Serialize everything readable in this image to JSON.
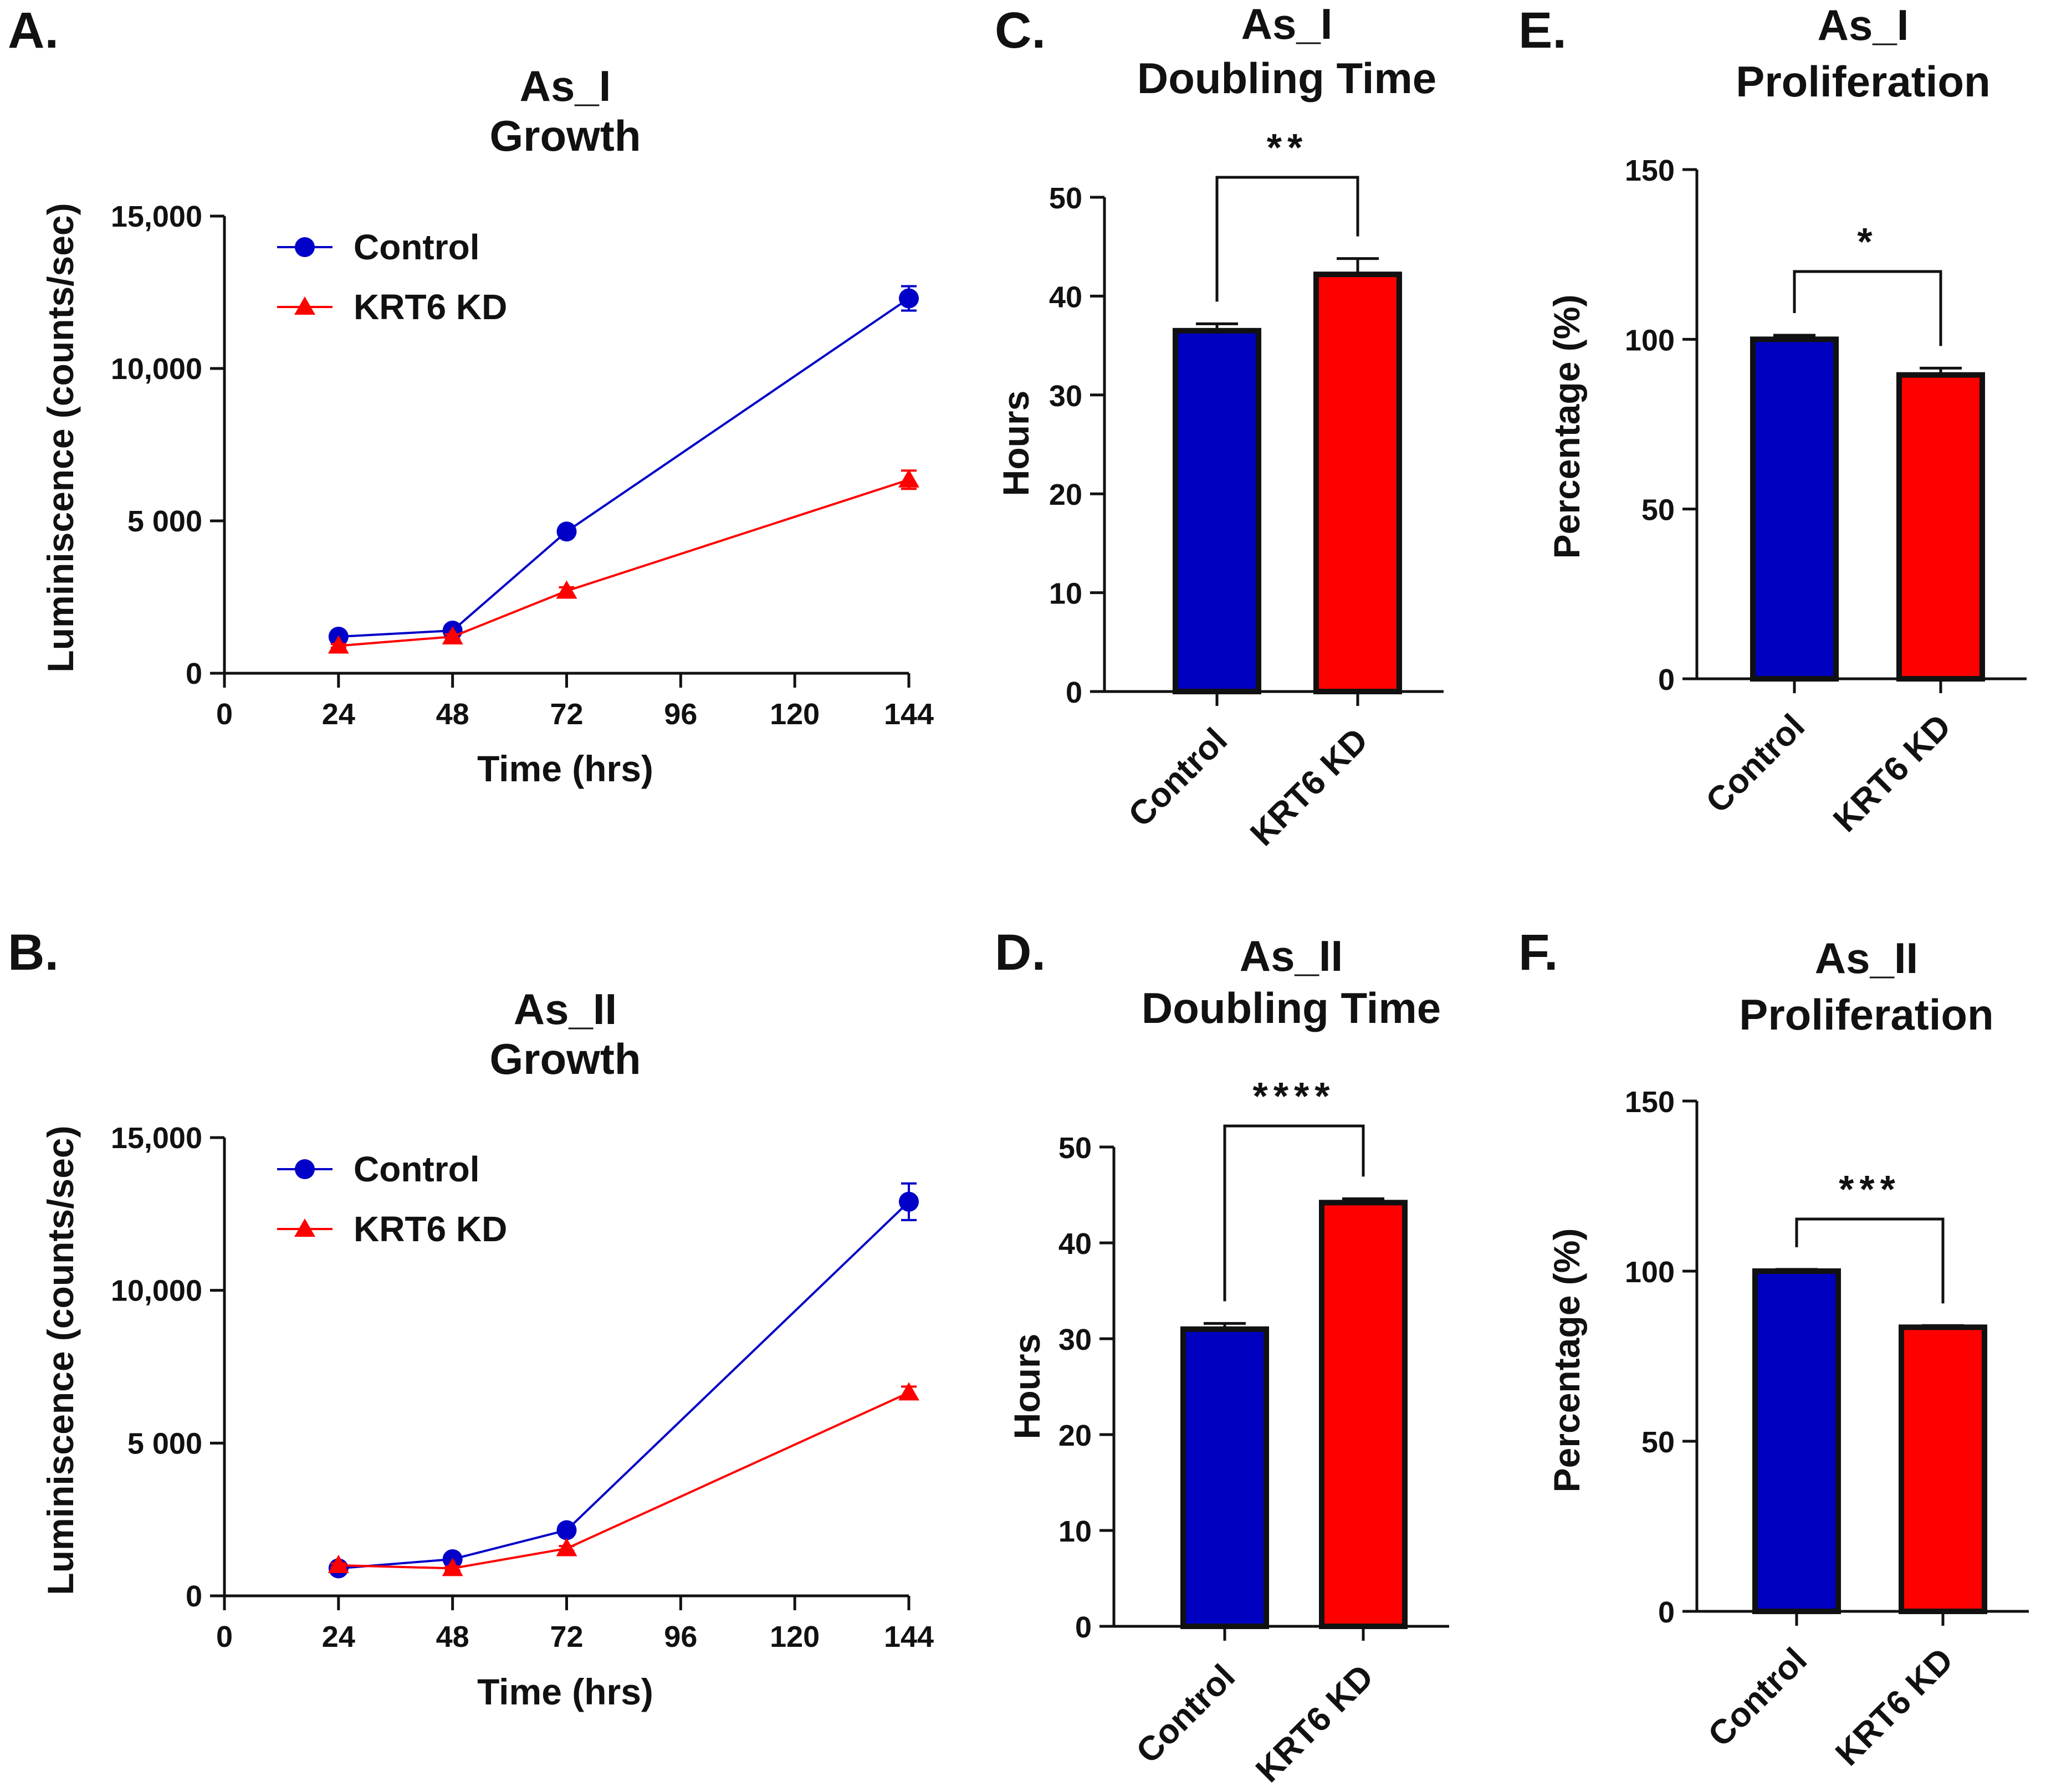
{
  "colors": {
    "control": "#0000c8",
    "krt6": "#ff0000",
    "control_bar": "#0000c0",
    "krt6_bar": "#ff0000",
    "axis": "#111111"
  },
  "chart_data": [
    {
      "id": "A",
      "panel": "A.",
      "type": "line",
      "title": [
        "As_I",
        "Growth"
      ],
      "xlabel": "Time (hrs)",
      "ylabel": "Luminiscence (counts/sec)",
      "xlim": [
        0,
        144
      ],
      "ylim": [
        0,
        15000
      ],
      "xticks": [
        0,
        24,
        48,
        72,
        96,
        120,
        144
      ],
      "xtick_labels": [
        "0",
        "24",
        "48",
        "72",
        "96",
        "120",
        "144"
      ],
      "yticks": [
        0,
        5000,
        10000,
        15000
      ],
      "ytick_labels": [
        "0",
        "5 000",
        "10,000",
        "15,000"
      ],
      "legend": "top-left",
      "series": [
        {
          "name": "Control",
          "color": "#0000c8",
          "marker": "circle",
          "x": [
            24,
            48,
            72,
            144
          ],
          "values": [
            1200,
            1400,
            4650,
            12300
          ],
          "err": [
            80,
            100,
            150,
            400
          ]
        },
        {
          "name": "KRT6 KD",
          "color": "#ff0000",
          "marker": "triangle",
          "x": [
            24,
            48,
            72,
            144
          ],
          "values": [
            900,
            1200,
            2700,
            6350
          ],
          "err": [
            60,
            80,
            120,
            300
          ]
        }
      ]
    },
    {
      "id": "B",
      "panel": "B.",
      "type": "line",
      "title": [
        "As_II",
        "Growth"
      ],
      "xlabel": "Time (hrs)",
      "ylabel": "Luminiscence (counts/sec)",
      "xlim": [
        0,
        144
      ],
      "ylim": [
        0,
        15000
      ],
      "xticks": [
        0,
        24,
        48,
        72,
        96,
        120,
        144
      ],
      "xtick_labels": [
        "0",
        "24",
        "48",
        "72",
        "96",
        "120",
        "144"
      ],
      "yticks": [
        0,
        5000,
        10000,
        15000
      ],
      "ytick_labels": [
        "0",
        "5 000",
        "10,000",
        "15,000"
      ],
      "legend": "top-left",
      "series": [
        {
          "name": "Control",
          "color": "#0000c8",
          "marker": "circle",
          "x": [
            24,
            48,
            72,
            144
          ],
          "values": [
            900,
            1200,
            2150,
            12900
          ],
          "err": [
            60,
            80,
            100,
            600
          ]
        },
        {
          "name": "KRT6 KD",
          "color": "#ff0000",
          "marker": "triangle",
          "x": [
            24,
            48,
            72,
            144
          ],
          "values": [
            1000,
            900,
            1550,
            6650
          ],
          "err": [
            60,
            60,
            80,
            200
          ]
        }
      ]
    },
    {
      "id": "C",
      "panel": "C.",
      "type": "bar",
      "title": [
        "As_I",
        "Doubling Time"
      ],
      "xlabel": "",
      "ylabel": "Hours",
      "ylim": [
        0,
        50
      ],
      "yticks": [
        0,
        10,
        20,
        30,
        40,
        50
      ],
      "ytick_labels": [
        "0",
        "10",
        "20",
        "30",
        "40",
        "50"
      ],
      "categories": [
        "Control",
        "KRT6 KD"
      ],
      "values": [
        36.5,
        42.2
      ],
      "err": [
        0.7,
        1.6
      ],
      "bar_colors": [
        "#0000c0",
        "#ff0000"
      ],
      "significance": "**"
    },
    {
      "id": "D",
      "panel": "D.",
      "type": "bar",
      "title": [
        "As_II",
        "Doubling Time"
      ],
      "xlabel": "",
      "ylabel": "Hours",
      "ylim": [
        0,
        50
      ],
      "yticks": [
        0,
        10,
        20,
        30,
        40,
        50
      ],
      "ytick_labels": [
        "0",
        "10",
        "20",
        "30",
        "40",
        "50"
      ],
      "categories": [
        "Control",
        "KRT6 KD"
      ],
      "values": [
        31.0,
        44.2
      ],
      "err": [
        0.6,
        0.4
      ],
      "bar_colors": [
        "#0000c0",
        "#ff0000"
      ],
      "significance": "****"
    },
    {
      "id": "E",
      "panel": "E.",
      "type": "bar",
      "title": [
        "As_I",
        "Proliferation"
      ],
      "xlabel": "",
      "ylabel": "Percentage (%)",
      "ylim": [
        0,
        150
      ],
      "yticks": [
        0,
        50,
        100,
        150
      ],
      "ytick_labels": [
        "0",
        "50",
        "100",
        "150"
      ],
      "categories": [
        "Control",
        "KRT6 KD"
      ],
      "values": [
        100,
        89.5
      ],
      "err": [
        1.2,
        2.0
      ],
      "bar_colors": [
        "#0000c0",
        "#ff0000"
      ],
      "significance": "*"
    },
    {
      "id": "F",
      "panel": "F.",
      "type": "bar",
      "title": [
        "As_II",
        "Proliferation"
      ],
      "xlabel": "",
      "ylabel": "Percentage (%)",
      "ylim": [
        0,
        150
      ],
      "yticks": [
        0,
        50,
        100,
        150
      ],
      "ytick_labels": [
        "0",
        "50",
        "100",
        "150"
      ],
      "categories": [
        "Control",
        "KRT6 KD"
      ],
      "values": [
        100,
        83.5
      ],
      "err": [
        0.5,
        0.5
      ],
      "bar_colors": [
        "#0000c0",
        "#ff0000"
      ],
      "significance": "***"
    }
  ]
}
